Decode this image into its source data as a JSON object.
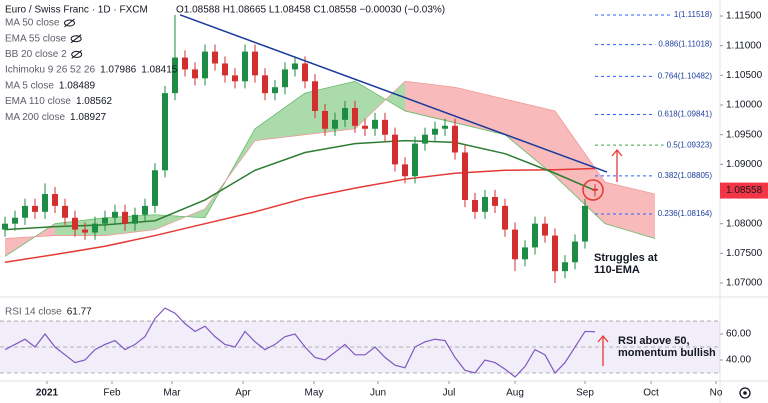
{
  "chart_data": [
    {
      "type": "candlestick",
      "title": "Euro / Swiss Franc · 1D · FXCM",
      "legend_text": "O1.08588 H1.08665 L1.08458 C1.08558 −0.00030 (−0.03%)",
      "legend_color": "#f23645",
      "indicator_legend": [
        {
          "name": "MA 50 close"
        },
        {
          "name": "EMA 55 close"
        },
        {
          "name": "BB 20 close 2"
        },
        {
          "name": "Ichimoku 9 26 52 26",
          "values": [
            1.07986,
            1.08415
          ],
          "colors": [
            "#43a047",
            "#e53935"
          ]
        },
        {
          "name": "MA 5 close",
          "values": [
            1.08489
          ],
          "colors": [
            "#1565c0"
          ]
        },
        {
          "name": "EMA 110 close",
          "values": [
            1.08562
          ],
          "colors": [
            "#2e7d32"
          ]
        },
        {
          "name": "MA 200 close",
          "values": [
            1.08927
          ],
          "colors": [
            "#e53935"
          ]
        }
      ],
      "x": [
        0,
        1,
        2,
        3,
        4,
        5,
        6,
        7,
        8,
        9,
        10,
        11,
        12,
        13,
        14,
        15,
        16,
        17,
        18,
        19,
        20,
        21,
        22,
        23,
        24,
        25,
        26,
        27,
        28,
        29,
        30,
        31,
        32,
        33,
        34,
        35,
        36,
        37,
        38,
        39,
        40,
        41,
        42,
        43,
        44,
        45,
        46,
        47,
        48,
        49,
        50,
        51,
        52,
        53,
        54,
        55,
        56,
        57,
        58,
        59
      ],
      "open": [
        1.079,
        1.08,
        1.081,
        1.083,
        1.082,
        1.085,
        1.083,
        1.081,
        1.079,
        1.0785,
        1.08,
        1.081,
        1.082,
        1.08,
        1.0815,
        1.083,
        1.089,
        1.102,
        1.108,
        1.106,
        1.1045,
        1.109,
        1.107,
        1.105,
        1.104,
        1.109,
        1.105,
        1.102,
        1.103,
        1.106,
        1.107,
        1.104,
        1.099,
        1.096,
        1.0975,
        1.0995,
        1.0965,
        1.096,
        1.0975,
        1.095,
        1.09,
        1.088,
        1.0935,
        1.095,
        1.096,
        1.0965,
        1.092,
        1.084,
        1.082,
        1.0845,
        1.083,
        1.079,
        1.074,
        1.076,
        1.08,
        1.078,
        1.072,
        1.0735,
        1.077,
        1.08588
      ],
      "high": [
        1.0812,
        1.0822,
        1.0842,
        1.0842,
        1.0868,
        1.0862,
        1.0842,
        1.0822,
        1.0802,
        1.0812,
        1.0822,
        1.0832,
        1.0832,
        1.0827,
        1.0842,
        1.0902,
        1.1032,
        1.1152,
        1.1092,
        1.1072,
        1.1102,
        1.1102,
        1.1082,
        1.1062,
        1.1102,
        1.1102,
        1.1062,
        1.1042,
        1.1072,
        1.1082,
        1.1082,
        1.1052,
        1.1002,
        1.0987,
        1.1007,
        1.1007,
        1.0977,
        1.0987,
        1.0987,
        1.0962,
        1.0912,
        1.0947,
        1.0962,
        1.0972,
        1.0977,
        1.0977,
        1.0932,
        1.0852,
        1.0857,
        1.0857,
        1.0842,
        1.0802,
        1.0772,
        1.0812,
        1.0812,
        1.0792,
        1.0747,
        1.0782,
        1.0842,
        1.08665
      ],
      "low": [
        1.0778,
        1.0788,
        1.0798,
        1.0808,
        1.0808,
        1.0818,
        1.0798,
        1.0778,
        1.0773,
        1.0773,
        1.0788,
        1.0798,
        1.0788,
        1.0788,
        1.0803,
        1.0818,
        1.0878,
        1.1008,
        1.1048,
        1.1033,
        1.1033,
        1.1058,
        1.1038,
        1.1028,
        1.1028,
        1.1038,
        1.1008,
        1.1008,
        1.1018,
        1.1048,
        1.1028,
        1.0978,
        1.0948,
        1.0948,
        1.0963,
        1.0953,
        1.0948,
        1.0948,
        1.0938,
        1.0888,
        1.0868,
        1.0868,
        1.0923,
        1.0938,
        1.0948,
        1.0908,
        1.0828,
        1.0808,
        1.0808,
        1.0818,
        1.0778,
        1.072,
        1.0728,
        1.0748,
        1.0768,
        1.07,
        1.0708,
        1.0723,
        1.0758,
        1.08458
      ],
      "close": [
        1.08,
        1.081,
        1.083,
        1.082,
        1.085,
        1.083,
        1.081,
        1.079,
        1.0785,
        1.08,
        1.081,
        1.082,
        1.08,
        1.0815,
        1.083,
        1.089,
        1.102,
        1.108,
        1.106,
        1.1045,
        1.109,
        1.107,
        1.105,
        1.104,
        1.109,
        1.105,
        1.102,
        1.103,
        1.106,
        1.107,
        1.104,
        1.099,
        1.096,
        1.0975,
        1.0995,
        1.0965,
        1.096,
        1.0975,
        1.095,
        1.09,
        1.088,
        1.0935,
        1.095,
        1.096,
        1.0965,
        1.092,
        1.084,
        1.082,
        1.0845,
        1.083,
        1.079,
        1.074,
        1.076,
        1.08,
        1.078,
        1.072,
        1.0735,
        1.077,
        1.083,
        1.08558
      ],
      "up_color": "#1e8c45",
      "down_color": "#d32f2f",
      "price_tag_color": "#f23645",
      "overlays": [
        {
          "color": "#e53935",
          "x": [
            0,
            5,
            10,
            15,
            20,
            25,
            30,
            35,
            40,
            45,
            50,
            55,
            59
          ],
          "values": [
            1.0735,
            1.0748,
            1.0762,
            1.078,
            1.08,
            1.082,
            1.0843,
            1.086,
            1.0875,
            1.0885,
            1.089,
            1.0891,
            1.0893
          ]
        },
        {
          "color": "#2e7d32",
          "x": [
            0,
            5,
            10,
            15,
            20,
            25,
            30,
            35,
            40,
            45,
            50,
            55,
            59
          ],
          "values": [
            1.079,
            1.0795,
            1.0798,
            1.0805,
            1.084,
            1.089,
            1.092,
            1.0935,
            1.094,
            1.0937,
            1.0918,
            1.0885,
            1.0856
          ]
        }
      ],
      "cloud": {
        "x": [
          0,
          5,
          10,
          15,
          20,
          25,
          30,
          35,
          40,
          45,
          50,
          55,
          60,
          65
        ],
        "span_a": [
          1.0745,
          1.08,
          1.081,
          1.0815,
          1.081,
          1.096,
          1.102,
          1.104,
          1.099,
          1.097,
          1.095,
          1.088,
          1.08,
          1.0775
        ],
        "span_b": [
          1.0775,
          1.078,
          1.078,
          1.079,
          1.0825,
          1.094,
          1.095,
          1.096,
          1.104,
          1.103,
          1.101,
          1.099,
          1.087,
          1.085
        ],
        "up_color": "#8fcf8f",
        "down_color": "#f6a3a3"
      },
      "trendline": {
        "x": [
          17.5,
          60.2
        ],
        "values": [
          1.1152,
          1.0887
        ],
        "color": "#1a3a9c"
      },
      "fib_levels": [
        {
          "label": "1(1.11518)",
          "value": 1.11518,
          "color": "#2962ff"
        },
        {
          "label": "0.886(1.11018)",
          "value": 1.11018,
          "color": "#2962ff"
        },
        {
          "label": "0.764(1.10482)",
          "value": 1.10482,
          "color": "#2962ff"
        },
        {
          "label": "0.618(1.09841)",
          "value": 1.09841,
          "color": "#2962ff"
        },
        {
          "label": "0.5(1.09323)",
          "value": 1.09323,
          "color": "#43a047"
        },
        {
          "label": "0.382(1.08805)",
          "value": 1.08805,
          "color": "#2962ff"
        },
        {
          "label": "0.236(1.08164)",
          "value": 1.08164,
          "color": "#2962ff"
        }
      ],
      "annotations": [
        {
          "lines": [
            "Struggles at",
            "110-EMA"
          ]
        }
      ],
      "xlim": [
        -0.5,
        71.5
      ],
      "ylim": [
        1.06798,
        1.1177
      ],
      "yticks": [
        {
          "value": 1.115,
          "label": "1.11500"
        },
        {
          "value": 1.11,
          "label": "1.11000"
        },
        {
          "value": 1.105,
          "label": "1.10500"
        },
        {
          "value": 1.1,
          "label": "1.10000"
        },
        {
          "value": 1.095,
          "label": "1.09500"
        },
        {
          "value": 1.09,
          "label": "1.09000"
        },
        {
          "value": 1.08,
          "label": "1.08000"
        },
        {
          "value": 1.075,
          "label": "1.07500"
        },
        {
          "value": 1.07,
          "label": "1.07000"
        }
      ],
      "grid": false
    },
    {
      "type": "line",
      "title": "RSI 14 close",
      "legend_value": 61.77,
      "color": "#7e57c2",
      "x": [
        0,
        1,
        2,
        3,
        4,
        5,
        6,
        7,
        8,
        9,
        10,
        11,
        12,
        13,
        14,
        15,
        16,
        17,
        18,
        19,
        20,
        21,
        22,
        23,
        24,
        25,
        26,
        27,
        28,
        29,
        30,
        31,
        32,
        33,
        34,
        35,
        36,
        37,
        38,
        39,
        40,
        41,
        42,
        43,
        44,
        45,
        46,
        47,
        48,
        49,
        50,
        51,
        52,
        53,
        54,
        55,
        56,
        57,
        58,
        59
      ],
      "values": [
        48,
        52,
        56,
        50,
        60,
        50,
        44,
        38,
        40,
        48,
        52,
        55,
        48,
        52,
        58,
        72,
        80,
        76,
        68,
        62,
        66,
        58,
        52,
        50,
        62,
        54,
        48,
        52,
        58,
        60,
        50,
        42,
        40,
        46,
        52,
        44,
        44,
        50,
        42,
        36,
        34,
        50,
        54,
        56,
        55,
        42,
        32,
        30,
        40,
        38,
        33,
        27,
        35,
        48,
        44,
        30,
        38,
        50,
        62,
        61.77
      ],
      "band": [
        30,
        70
      ],
      "midline": 50,
      "annotations": [
        {
          "lines": [
            "RSI above 50,",
            "momentum bullish"
          ]
        }
      ],
      "xlim": [
        -0.5,
        71.5
      ],
      "ylim": [
        24.6,
        86.2
      ],
      "yticks": [
        {
          "value": 60,
          "label": "60.00"
        },
        {
          "value": 40,
          "label": "40.00"
        }
      ],
      "xticks": [
        {
          "value": 4.2,
          "label": "2021"
        },
        {
          "value": 10.7,
          "label": "Feb"
        },
        {
          "value": 16.7,
          "label": "Mar"
        },
        {
          "value": 23.8,
          "label": "Apr"
        },
        {
          "value": 30.9,
          "label": "May"
        },
        {
          "value": 37.3,
          "label": "Jun"
        },
        {
          "value": 44.4,
          "label": "Jul"
        },
        {
          "value": 51,
          "label": "Aug"
        },
        {
          "value": 58,
          "label": "Sep"
        },
        {
          "value": 64.6,
          "label": "Oct"
        },
        {
          "value": 71.1,
          "label": "No"
        }
      ],
      "grid": false
    }
  ]
}
